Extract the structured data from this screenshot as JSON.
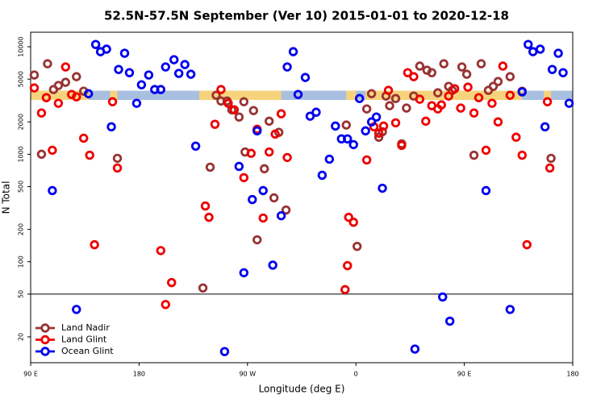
{
  "chart_data": {
    "type": "scatter",
    "title": "52.5N-57.5N September (Ver 10)   2015-01-01 to 2020-12-18",
    "x_label": "Longitude (deg E)",
    "y_label": "N Total",
    "log_y": true,
    "xlim": [
      -270,
      180
    ],
    "ylim": [
      11.5,
      13650
    ],
    "xticks": [
      {
        "value": -270,
        "label": "90 E"
      },
      {
        "value": -180,
        "label": "180"
      },
      {
        "value": -90,
        "label": "90 W"
      },
      0,
      {
        "value": 90,
        "label": "90 E"
      },
      180
    ],
    "yticks": [
      20,
      50,
      100,
      200,
      500,
      1000,
      2000,
      5000,
      10000
    ],
    "hline": 50,
    "legend": "bottom-left",
    "strip": {
      "ylim": [
        3200,
        3900
      ],
      "ocean_color": "#a9bfe0",
      "land_color": "#f7d37c",
      "land_ranges": [
        [
          -270,
          -222
        ],
        [
          -204,
          -198
        ],
        [
          -130,
          -62
        ],
        [
          -8,
          0
        ],
        [
          8,
          138
        ],
        [
          156,
          162
        ]
      ]
    },
    "series": [
      {
        "name": "Land Nadir",
        "color": "#993333",
        "x": [
          -267,
          -261,
          -256,
          -251,
          -247,
          -241,
          -232,
          -226,
          -198,
          -127,
          -121,
          -116,
          -112,
          -107,
          -103,
          -97,
          -93,
          -92,
          -85,
          -82,
          -76,
          -72,
          -68,
          -64,
          -58,
          -8,
          1,
          9,
          13,
          19,
          22,
          25,
          28,
          33,
          38,
          42,
          48,
          53,
          59,
          63,
          68,
          73,
          77,
          80,
          88,
          92,
          98,
          104,
          110,
          114,
          118,
          128,
          138,
          162
        ],
        "values": [
          5460,
          1000,
          6950,
          4000,
          4360,
          4670,
          5270,
          3860,
          917,
          57,
          758,
          3540,
          3130,
          3130,
          2590,
          2220,
          3080,
          1050,
          2550,
          160,
          733,
          2030,
          393,
          1600,
          303,
          1870,
          139,
          2640,
          3660,
          1440,
          1620,
          3480,
          2830,
          3300,
          1250,
          2690,
          3480,
          6610,
          6050,
          5740,
          3730,
          6950,
          4280,
          3930,
          6490,
          5550,
          980,
          6950,
          3930,
          4280,
          4750,
          5270,
          3860,
          917
        ]
      },
      {
        "name": "Land Glint",
        "color": "#ee0000",
        "x": [
          -267,
          -261,
          -257,
          -252,
          -247,
          -241,
          -236,
          -232,
          -226,
          -221,
          -217,
          -202,
          -198,
          -162,
          -158,
          -153,
          -125,
          -122,
          -117,
          -112,
          -106,
          -101,
          -93,
          -87,
          -82,
          -77,
          -72,
          -67,
          -62,
          -57,
          -9,
          -7,
          -6,
          -2,
          9,
          15,
          19,
          23,
          27,
          33,
          38,
          43,
          48,
          53,
          58,
          63,
          68,
          71,
          77,
          82,
          87,
          93,
          98,
          102,
          108,
          113,
          118,
          122,
          128,
          133,
          138,
          142,
          159,
          161
        ],
        "values": [
          4140,
          2420,
          3360,
          1090,
          2980,
          6490,
          3600,
          3420,
          1410,
          980,
          144,
          3080,
          745,
          127,
          40,
          64,
          330,
          259,
          1900,
          4000,
          2980,
          2590,
          606,
          1020,
          1710,
          255,
          1050,
          1540,
          2380,
          933,
          55,
          92,
          259,
          233,
          885,
          1800,
          1570,
          1830,
          3930,
          1960,
          1210,
          5740,
          5270,
          3250,
          2030,
          2830,
          2640,
          2880,
          3480,
          4070,
          2690,
          4210,
          2420,
          3360,
          1090,
          2980,
          2000,
          6610,
          3540,
          1440,
          980,
          144,
          3080,
          745
        ]
      },
      {
        "name": "Ocean Glint",
        "color": "#0000ee",
        "x": [
          -252,
          -232,
          -222,
          -216,
          -212,
          -207,
          -203,
          -197,
          -192,
          -188,
          -182,
          -178,
          -172,
          -167,
          -162,
          -158,
          -151,
          -147,
          -142,
          -137,
          -133,
          -109,
          -97,
          -93,
          -86,
          -82,
          -77,
          -69,
          -62,
          -57,
          -52,
          -48,
          -42,
          -38,
          -33,
          -28,
          -22,
          -17,
          -12,
          -7,
          -2,
          3,
          8,
          13,
          17,
          22,
          49,
          72,
          78,
          108,
          128,
          138,
          143,
          147,
          153,
          157,
          163,
          168,
          172,
          177
        ],
        "values": [
          459,
          36,
          3660,
          10500,
          9000,
          9500,
          1800,
          6150,
          8700,
          5740,
          2980,
          4430,
          5460,
          4000,
          4000,
          6490,
          7580,
          5650,
          6830,
          5550,
          1190,
          14.6,
          771,
          79,
          379,
          1650,
          459,
          93,
          268,
          6490,
          9000,
          3600,
          5180,
          2260,
          2460,
          638,
          900,
          1830,
          1390,
          1390,
          1230,
          3300,
          1650,
          2000,
          2220,
          483,
          15.4,
          47,
          28,
          459,
          36,
          3800,
          10500,
          9000,
          9500,
          1800,
          6150,
          8700,
          5740,
          2980
        ]
      }
    ]
  }
}
